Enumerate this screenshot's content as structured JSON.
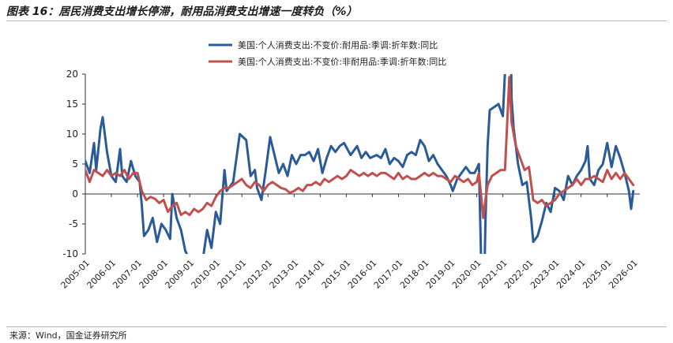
{
  "title": "图表 16：居民消费支出增长停滞，耐用品消费支出增速一度转负（%）",
  "source": "来源：Wind，国金证券研究所",
  "colors": {
    "durable": "#2a5b98",
    "nondurable": "#c0504d",
    "axis": "#333333"
  },
  "chart_data": {
    "type": "line",
    "xlabel": "",
    "ylabel": "",
    "ylim": [
      -10,
      20
    ],
    "yticks": [
      "20",
      "15",
      "10",
      "5",
      "0",
      "-5",
      "-10"
    ],
    "xlim": [
      "2005-01",
      "2026-04"
    ],
    "xticks": [
      "2005-01",
      "2006-01",
      "2007-01",
      "2008-01",
      "2009-01",
      "2010-01",
      "2011-01",
      "2012-01",
      "2013-01",
      "2014-01",
      "2015-01",
      "2016-01",
      "2017-01",
      "2018-01",
      "2019-01",
      "2020-01",
      "2021-01",
      "2022-01",
      "2023-01",
      "2024-01",
      "2025-01",
      "2026-01"
    ],
    "legend_position": "top-center",
    "grid": false,
    "series": [
      {
        "name": "美国:个人消费支出:不变价:耐用品:季调:折年数:同比",
        "key": "durable",
        "points": [
          [
            "2005-01",
            5.5
          ],
          [
            "2005-03",
            3.5
          ],
          [
            "2005-05",
            8.5
          ],
          [
            "2005-06",
            4.0
          ],
          [
            "2005-08",
            11.0
          ],
          [
            "2005-09",
            12.8
          ],
          [
            "2005-11",
            7.0
          ],
          [
            "2006-01",
            3.0
          ],
          [
            "2006-03",
            2.0
          ],
          [
            "2006-05",
            7.5
          ],
          [
            "2006-06",
            3.0
          ],
          [
            "2006-08",
            2.0
          ],
          [
            "2006-10",
            5.5
          ],
          [
            "2006-12",
            3.0
          ],
          [
            "2007-02",
            2.0
          ],
          [
            "2007-03",
            -2.0
          ],
          [
            "2007-04",
            -7.0
          ],
          [
            "2007-06",
            -6.0
          ],
          [
            "2007-08",
            -4.0
          ],
          [
            "2007-10",
            -8.0
          ],
          [
            "2007-12",
            -5.0
          ],
          [
            "2008-02",
            -6.0
          ],
          [
            "2008-04",
            -7.5
          ],
          [
            "2008-05",
            0.0
          ],
          [
            "2008-07",
            -4.0
          ],
          [
            "2008-09",
            -6.0
          ],
          [
            "2008-11",
            -9.5
          ],
          [
            "2009-01",
            -11.0
          ],
          [
            "2009-04",
            -10.5
          ],
          [
            "2009-07",
            -11.0
          ],
          [
            "2009-09",
            -6.0
          ],
          [
            "2009-11",
            -9.0
          ],
          [
            "2010-01",
            -3.0
          ],
          [
            "2010-03",
            -5.0
          ],
          [
            "2010-05",
            4.0
          ],
          [
            "2010-06",
            0.5
          ],
          [
            "2010-09",
            2.0
          ],
          [
            "2010-12",
            10.0
          ],
          [
            "2011-03",
            9.0
          ],
          [
            "2011-05",
            3.0
          ],
          [
            "2011-07",
            4.0
          ],
          [
            "2011-08",
            1.0
          ],
          [
            "2011-10",
            -1.0
          ],
          [
            "2011-12",
            4.0
          ],
          [
            "2012-02",
            9.5
          ],
          [
            "2012-04",
            6.5
          ],
          [
            "2012-06",
            3.5
          ],
          [
            "2012-08",
            5.0
          ],
          [
            "2012-10",
            3.0
          ],
          [
            "2012-12",
            6.5
          ],
          [
            "2013-02",
            5.0
          ],
          [
            "2013-04",
            6.5
          ],
          [
            "2013-06",
            6.5
          ],
          [
            "2013-08",
            7.0
          ],
          [
            "2013-10",
            5.5
          ],
          [
            "2013-12",
            7.5
          ],
          [
            "2014-02",
            3.5
          ],
          [
            "2014-04",
            6.0
          ],
          [
            "2014-06",
            8.0
          ],
          [
            "2014-08",
            7.0
          ],
          [
            "2014-10",
            8.0
          ],
          [
            "2014-12",
            8.5
          ],
          [
            "2015-03",
            6.5
          ],
          [
            "2015-06",
            8.0
          ],
          [
            "2015-08",
            6.0
          ],
          [
            "2015-10",
            7.0
          ],
          [
            "2015-12",
            6.0
          ],
          [
            "2016-03",
            6.5
          ],
          [
            "2016-05",
            6.0
          ],
          [
            "2016-07",
            7.5
          ],
          [
            "2016-09",
            5.0
          ],
          [
            "2016-11",
            6.0
          ],
          [
            "2017-01",
            5.5
          ],
          [
            "2017-03",
            4.5
          ],
          [
            "2017-05",
            6.5
          ],
          [
            "2017-07",
            7.0
          ],
          [
            "2017-09",
            6.5
          ],
          [
            "2017-11",
            9.0
          ],
          [
            "2018-01",
            8.0
          ],
          [
            "2018-03",
            5.5
          ],
          [
            "2018-05",
            6.5
          ],
          [
            "2018-07",
            5.0
          ],
          [
            "2018-09",
            4.0
          ],
          [
            "2018-11",
            3.0
          ],
          [
            "2019-01",
            1.5
          ],
          [
            "2019-02",
            0.5
          ],
          [
            "2019-04",
            2.5
          ],
          [
            "2019-06",
            3.5
          ],
          [
            "2019-08",
            4.5
          ],
          [
            "2019-10",
            3.5
          ],
          [
            "2019-12",
            3.5
          ],
          [
            "2020-02",
            5.0
          ],
          [
            "2020-03",
            -10.5
          ],
          [
            "2020-04",
            -24.0
          ],
          [
            "2020-05",
            -5.0
          ],
          [
            "2020-06",
            8.0
          ],
          [
            "2020-07",
            14.0
          ],
          [
            "2020-09",
            14.5
          ],
          [
            "2020-11",
            15.0
          ],
          [
            "2021-01",
            13.0
          ],
          [
            "2021-03",
            28.0
          ],
          [
            "2021-04",
            44.0
          ],
          [
            "2021-05",
            16.0
          ],
          [
            "2021-06",
            11.0
          ],
          [
            "2021-08",
            5.0
          ],
          [
            "2021-10",
            1.5
          ],
          [
            "2021-12",
            2.0
          ],
          [
            "2022-02",
            -4.0
          ],
          [
            "2022-03",
            -8.0
          ],
          [
            "2022-05",
            -7.0
          ],
          [
            "2022-07",
            -4.5
          ],
          [
            "2022-09",
            -1.5
          ],
          [
            "2022-11",
            -3.0
          ],
          [
            "2023-01",
            1.0
          ],
          [
            "2023-03",
            0.5
          ],
          [
            "2023-05",
            -1.0
          ],
          [
            "2023-07",
            3.0
          ],
          [
            "2023-09",
            1.5
          ],
          [
            "2023-11",
            3.0
          ],
          [
            "2024-01",
            4.0
          ],
          [
            "2024-03",
            5.5
          ],
          [
            "2024-04",
            8.0
          ],
          [
            "2024-05",
            2.5
          ],
          [
            "2024-07",
            1.5
          ],
          [
            "2024-09",
            4.0
          ],
          [
            "2024-11",
            5.0
          ],
          [
            "2025-01",
            8.5
          ],
          [
            "2025-02",
            6.5
          ],
          [
            "2025-03",
            4.5
          ],
          [
            "2025-05",
            8.0
          ],
          [
            "2025-07",
            6.0
          ],
          [
            "2025-09",
            3.5
          ],
          [
            "2025-11",
            0.5
          ],
          [
            "2025-12",
            -2.5
          ],
          [
            "2026-01",
            0.5
          ]
        ]
      },
      {
        "name": "美国:个人消费支出:不变价:非耐用品:季调:折年数:同比",
        "key": "nondurable",
        "points": [
          [
            "2005-01",
            4.0
          ],
          [
            "2005-03",
            2.0
          ],
          [
            "2005-05",
            4.0
          ],
          [
            "2005-07",
            3.5
          ],
          [
            "2005-09",
            3.0
          ],
          [
            "2005-11",
            4.0
          ],
          [
            "2006-01",
            3.0
          ],
          [
            "2006-03",
            3.5
          ],
          [
            "2006-05",
            3.0
          ],
          [
            "2006-07",
            4.0
          ],
          [
            "2006-09",
            2.5
          ],
          [
            "2006-11",
            3.5
          ],
          [
            "2007-01",
            3.5
          ],
          [
            "2007-03",
            0.5
          ],
          [
            "2007-05",
            -1.0
          ],
          [
            "2007-07",
            -0.5
          ],
          [
            "2007-09",
            -0.8
          ],
          [
            "2007-11",
            -1.5
          ],
          [
            "2008-01",
            -1.0
          ],
          [
            "2008-03",
            -3.0
          ],
          [
            "2008-05",
            -2.0
          ],
          [
            "2008-07",
            -1.5
          ],
          [
            "2008-09",
            -3.5
          ],
          [
            "2008-11",
            -3.0
          ],
          [
            "2009-01",
            -3.5
          ],
          [
            "2009-03",
            -2.5
          ],
          [
            "2009-05",
            -3.0
          ],
          [
            "2009-07",
            -2.5
          ],
          [
            "2009-09",
            -1.5
          ],
          [
            "2009-11",
            -2.0
          ],
          [
            "2010-01",
            -0.5
          ],
          [
            "2010-03",
            0.5
          ],
          [
            "2010-05",
            1.0
          ],
          [
            "2010-07",
            1.0
          ],
          [
            "2010-09",
            1.5
          ],
          [
            "2010-11",
            2.0
          ],
          [
            "2011-01",
            2.5
          ],
          [
            "2011-03",
            1.5
          ],
          [
            "2011-05",
            1.0
          ],
          [
            "2011-07",
            2.0
          ],
          [
            "2011-09",
            1.5
          ],
          [
            "2011-11",
            0.5
          ],
          [
            "2012-01",
            1.5
          ],
          [
            "2012-03",
            2.0
          ],
          [
            "2012-05",
            1.5
          ],
          [
            "2012-07",
            1.0
          ],
          [
            "2012-09",
            0.8
          ],
          [
            "2012-11",
            0.2
          ],
          [
            "2013-01",
            0.5
          ],
          [
            "2013-03",
            1.0
          ],
          [
            "2013-05",
            0.5
          ],
          [
            "2013-07",
            1.5
          ],
          [
            "2013-09",
            1.5
          ],
          [
            "2013-11",
            2.0
          ],
          [
            "2014-01",
            1.5
          ],
          [
            "2014-03",
            2.5
          ],
          [
            "2014-05",
            2.0
          ],
          [
            "2014-07",
            2.5
          ],
          [
            "2014-09",
            3.0
          ],
          [
            "2014-11",
            2.5
          ],
          [
            "2015-01",
            3.0
          ],
          [
            "2015-03",
            4.0
          ],
          [
            "2015-05",
            3.5
          ],
          [
            "2015-07",
            3.0
          ],
          [
            "2015-09",
            3.5
          ],
          [
            "2015-11",
            3.0
          ],
          [
            "2016-01",
            3.5
          ],
          [
            "2016-03",
            3.0
          ],
          [
            "2016-05",
            3.5
          ],
          [
            "2016-07",
            3.5
          ],
          [
            "2016-09",
            3.0
          ],
          [
            "2016-11",
            2.5
          ],
          [
            "2017-01",
            3.5
          ],
          [
            "2017-03",
            2.5
          ],
          [
            "2017-05",
            3.0
          ],
          [
            "2017-07",
            2.5
          ],
          [
            "2017-09",
            2.5
          ],
          [
            "2017-11",
            3.0
          ],
          [
            "2018-01",
            3.5
          ],
          [
            "2018-03",
            3.0
          ],
          [
            "2018-05",
            3.5
          ],
          [
            "2018-07",
            3.0
          ],
          [
            "2018-09",
            3.0
          ],
          [
            "2018-11",
            2.5
          ],
          [
            "2019-01",
            2.0
          ],
          [
            "2019-03",
            3.0
          ],
          [
            "2019-05",
            2.5
          ],
          [
            "2019-07",
            2.0
          ],
          [
            "2019-09",
            2.5
          ],
          [
            "2019-11",
            1.5
          ],
          [
            "2020-01",
            2.0
          ],
          [
            "2020-02",
            3.5
          ],
          [
            "2020-04",
            -4.0
          ],
          [
            "2020-05",
            -1.0
          ],
          [
            "2020-06",
            1.5
          ],
          [
            "2020-08",
            3.0
          ],
          [
            "2020-10",
            3.5
          ],
          [
            "2020-12",
            4.0
          ],
          [
            "2021-02",
            4.0
          ],
          [
            "2021-04",
            19.5
          ],
          [
            "2021-05",
            12.0
          ],
          [
            "2021-07",
            8.0
          ],
          [
            "2021-09",
            6.0
          ],
          [
            "2021-11",
            4.0
          ],
          [
            "2022-01",
            4.5
          ],
          [
            "2022-03",
            -1.0
          ],
          [
            "2022-05",
            -1.5
          ],
          [
            "2022-07",
            -1.0
          ],
          [
            "2022-09",
            -2.0
          ],
          [
            "2022-11",
            -1.5
          ],
          [
            "2023-01",
            -1.0
          ],
          [
            "2023-03",
            0.0
          ],
          [
            "2023-05",
            0.5
          ],
          [
            "2023-07",
            1.0
          ],
          [
            "2023-09",
            1.5
          ],
          [
            "2023-11",
            2.5
          ],
          [
            "2024-01",
            1.5
          ],
          [
            "2024-03",
            2.5
          ],
          [
            "2024-05",
            2.5
          ],
          [
            "2024-07",
            3.0
          ],
          [
            "2024-09",
            2.5
          ],
          [
            "2024-11",
            2.0
          ],
          [
            "2025-01",
            4.0
          ],
          [
            "2025-03",
            2.5
          ],
          [
            "2025-05",
            3.5
          ],
          [
            "2025-07",
            2.5
          ],
          [
            "2025-09",
            3.5
          ],
          [
            "2025-11",
            2.5
          ],
          [
            "2026-01",
            1.5
          ]
        ]
      }
    ]
  }
}
